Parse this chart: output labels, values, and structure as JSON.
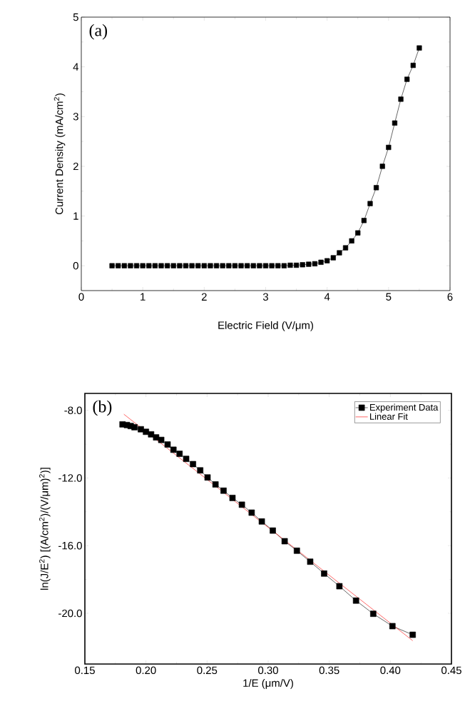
{
  "chart_data": [
    {
      "type": "line",
      "annotations": [
        "(a)"
      ],
      "xlabel": "Electric Field (V/μm)",
      "ylabel": "Current Density  (mA/cm$^{2}$)",
      "xlim": [
        0,
        6
      ],
      "ylim": [
        -0.5,
        5
      ],
      "xticks": [
        0,
        1,
        2,
        3,
        4,
        5,
        6
      ],
      "yticks": [
        0,
        1,
        2,
        3,
        4,
        5
      ],
      "legend": false,
      "marker": "square",
      "series": [
        {
          "color": "#000000",
          "x": [
            0.5,
            0.6,
            0.7,
            0.8,
            0.9,
            1.0,
            1.1,
            1.2,
            1.3,
            1.4,
            1.5,
            1.6,
            1.7,
            1.8,
            1.9,
            2.0,
            2.1,
            2.2,
            2.3,
            2.4,
            2.5,
            2.6,
            2.7,
            2.8,
            2.9,
            3.0,
            3.1,
            3.2,
            3.3,
            3.4,
            3.5,
            3.6,
            3.7,
            3.8,
            3.9,
            4.0,
            4.1,
            4.2,
            4.3,
            4.4,
            4.5,
            4.6,
            4.7,
            4.8,
            4.9,
            5.0,
            5.1,
            5.2,
            5.3,
            5.4,
            5.5
          ],
          "values": [
            0,
            0,
            0,
            0,
            0,
            0,
            0,
            0,
            0,
            0,
            0,
            0,
            0,
            0,
            0,
            0,
            0,
            0,
            0,
            0,
            0,
            0,
            0,
            0,
            0,
            0,
            0,
            0,
            0,
            0.01,
            0.01,
            0.02,
            0.03,
            0.04,
            0.07,
            0.1,
            0.16,
            0.26,
            0.36,
            0.5,
            0.66,
            0.91,
            1.25,
            1.57,
            2.0,
            2.38,
            2.87,
            3.35,
            3.75,
            4.03,
            4.38
          ]
        }
      ]
    },
    {
      "type": "line",
      "annotations": [
        "(b)"
      ],
      "xlabel": "1/E (μm/V)",
      "ylabel": "ln(J/E$^{2}$) [(A/cm$^{2}$)/(V/μm)$^{2}$)]",
      "xlim": [
        0.15,
        0.45
      ],
      "ylim": [
        -23,
        -7
      ],
      "legend": "top right",
      "xticks": [
        {
          "value": 0.15,
          "label": "0.15"
        },
        {
          "value": 0.2,
          "label": "0.20"
        },
        {
          "value": 0.25,
          "label": "0.25"
        },
        {
          "value": 0.3,
          "label": "0.30"
        },
        {
          "value": 0.35,
          "label": "0.35"
        },
        {
          "value": 0.4,
          "label": "0.40"
        },
        {
          "value": 0.45,
          "label": "0.45"
        }
      ],
      "yticks": [
        {
          "value": -8,
          "label": "-8.0"
        },
        {
          "value": -12,
          "label": "-12.0"
        },
        {
          "value": -16,
          "label": "-16.0"
        },
        {
          "value": -20,
          "label": "-20.0"
        }
      ],
      "series": [
        {
          "name": "Experiment Data",
          "color": "#000000",
          "marker": "square",
          "x": [
            0.1808,
            0.1844,
            0.1875,
            0.1906,
            0.1958,
            0.2,
            0.2042,
            0.2083,
            0.2125,
            0.2177,
            0.2225,
            0.2275,
            0.2329,
            0.2385,
            0.2444,
            0.2504,
            0.2569,
            0.2635,
            0.2708,
            0.2785,
            0.2865,
            0.2948,
            0.3038,
            0.3135,
            0.3235,
            0.3344,
            0.3458,
            0.3583,
            0.3719,
            0.386,
            0.4017,
            0.4183
          ],
          "values": [
            -8.83,
            -8.87,
            -8.93,
            -9.0,
            -9.12,
            -9.27,
            -9.42,
            -9.6,
            -9.75,
            -10.02,
            -10.33,
            -10.57,
            -10.87,
            -11.18,
            -11.55,
            -11.97,
            -12.38,
            -12.75,
            -13.18,
            -13.58,
            -14.05,
            -14.57,
            -15.11,
            -15.74,
            -16.3,
            -16.95,
            -17.65,
            -18.4,
            -19.25,
            -20.03,
            -20.76,
            -21.27
          ]
        },
        {
          "name": "Linear Fit",
          "color": "#ff0000",
          "marker": "none",
          "x": [
            0.1819,
            0.4183
          ],
          "values": [
            -8.23,
            -21.62
          ]
        }
      ]
    }
  ]
}
